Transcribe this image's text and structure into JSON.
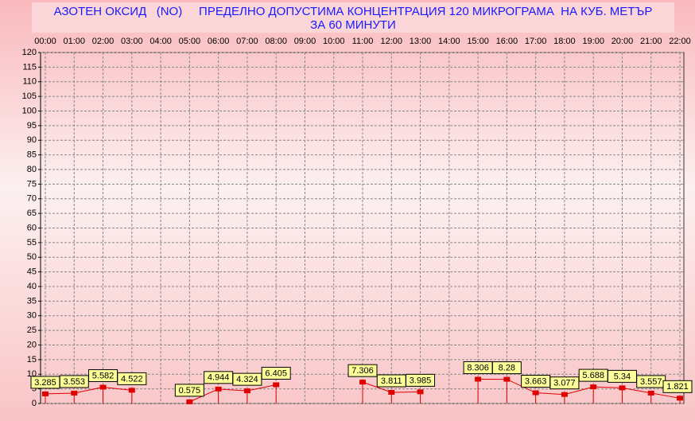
{
  "chart_data": {
    "type": "line",
    "title": "АЗОТЕН ОКСИД   (NO)     ПРЕДЕЛНО ДОПУСТИМА КОНЦЕНТРАЦИЯ 120 МИКРОГРАМА  НА КУБ. МЕТЪР",
    "subtitle": "ЗА 60 МИНУТИ",
    "categories": [
      "00:00",
      "01:00",
      "02:00",
      "03:00",
      "04:00",
      "05:00",
      "06:00",
      "07:00",
      "08:00",
      "09:00",
      "10:00",
      "11:00",
      "12:00",
      "13:00",
      "14:00",
      "15:00",
      "16:00",
      "17:00",
      "18:00",
      "19:00",
      "20:00",
      "21:00",
      "22:00"
    ],
    "values": [
      3.285,
      3.553,
      5.582,
      4.522,
      null,
      0.575,
      4.944,
      4.324,
      6.405,
      null,
      null,
      7.306,
      3.811,
      3.985,
      null,
      8.306,
      8.28,
      3.663,
      3.077,
      5.688,
      5.34,
      3.557,
      1.821
    ],
    "color": "#e00000",
    "label_color": "#ffff99",
    "ylim": [
      0,
      120
    ],
    "yticks": [
      0,
      5,
      10,
      15,
      20,
      25,
      30,
      35,
      40,
      45,
      50,
      55,
      60,
      65,
      70,
      75,
      80,
      85,
      90,
      95,
      100,
      105,
      110,
      115,
      120
    ],
    "grid": true
  }
}
